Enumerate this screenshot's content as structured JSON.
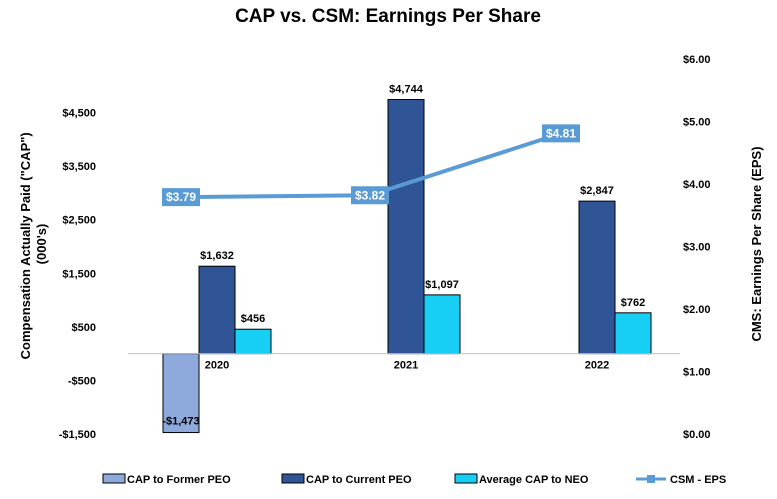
{
  "chart_data": {
    "type": "bar",
    "title": "CAP vs. CSM: Earnings Per Share",
    "categories": [
      "2020",
      "2021",
      "2022"
    ],
    "ylabel": "Compensation Actually Paid (\"CAP\")\n(000's)",
    "y2label": "CMS: Earnings Per Share (EPS)",
    "ylim": [
      -1500,
      5500
    ],
    "y2lim": [
      0,
      6
    ],
    "yticks": [
      -1500,
      -500,
      500,
      1500,
      2500,
      3500,
      4500
    ],
    "ytick_labels": [
      "-$1,500",
      "-$500",
      "$500",
      "$1,500",
      "$2,500",
      "$3,500",
      "$4,500"
    ],
    "y2ticks": [
      0,
      1,
      2,
      3,
      4,
      5,
      6
    ],
    "y2tick_labels": [
      "$0.00",
      "$1.00",
      "$2.00",
      "$3.00",
      "$4.00",
      "$5.00",
      "$6.00"
    ],
    "series": [
      {
        "name": "CAP to Former PEO",
        "kind": "bar",
        "color": "#8EA9DB",
        "values": [
          -1473,
          null,
          null
        ],
        "labels": [
          "-$1,473",
          "",
          ""
        ]
      },
      {
        "name": "CAP to Current PEO",
        "kind": "bar",
        "color": "#2F5597",
        "values": [
          1632,
          4744,
          2847
        ],
        "labels": [
          "$1,632",
          "$4,744",
          "$2,847"
        ]
      },
      {
        "name": "Average CAP to NEO",
        "kind": "bar",
        "color": "#17CFF5",
        "values": [
          456,
          1097,
          762
        ],
        "labels": [
          "$456",
          "$1,097",
          "$762"
        ]
      },
      {
        "name": "CSM - EPS",
        "kind": "line",
        "axis": "secondary",
        "color": "#5B9BD5",
        "values": [
          3.79,
          3.82,
          4.81
        ],
        "labels": [
          "$3.79",
          "$3.82",
          "$4.81"
        ]
      }
    ],
    "legend": "bottom",
    "grid": false
  }
}
